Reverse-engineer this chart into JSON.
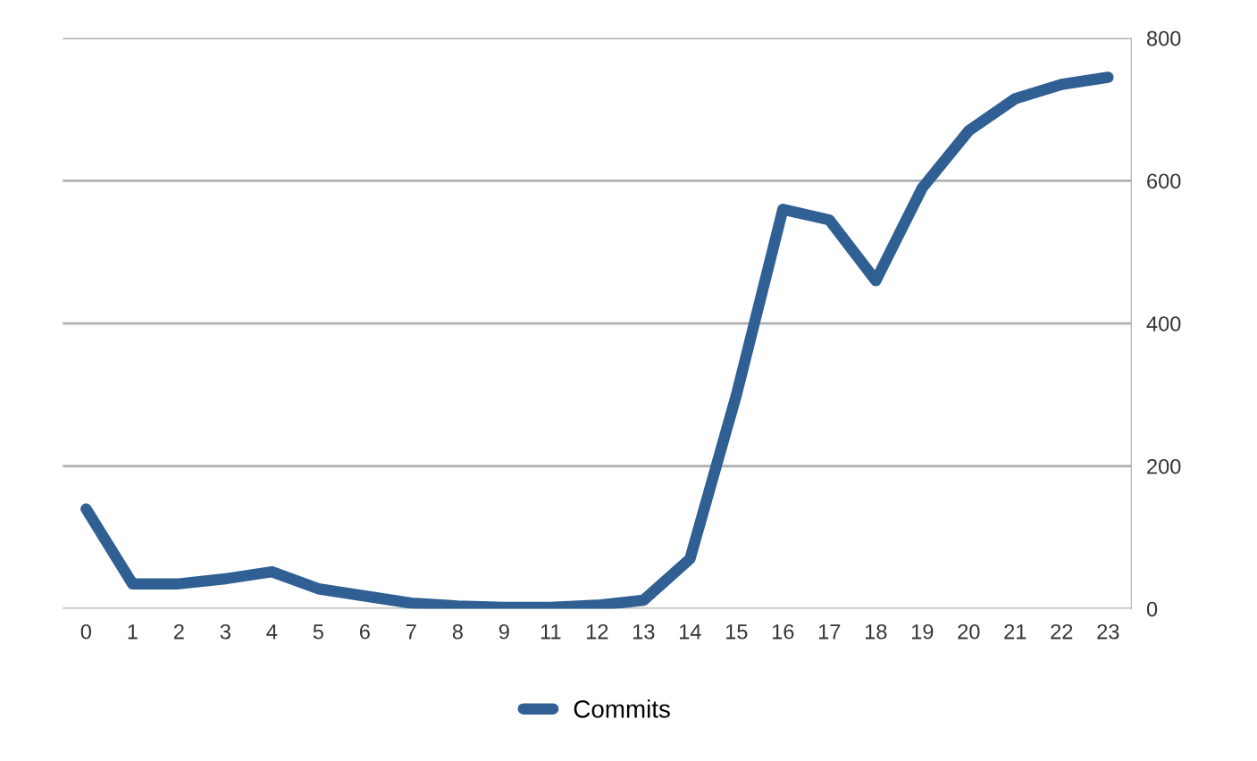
{
  "chart_data": {
    "type": "line",
    "categories": [
      "0",
      "1",
      "2",
      "3",
      "4",
      "5",
      "6",
      "7",
      "8",
      "9",
      "11",
      "12",
      "13",
      "14",
      "15",
      "16",
      "17",
      "18",
      "19",
      "20",
      "21",
      "22",
      "23"
    ],
    "series": [
      {
        "name": "Commits",
        "color": "#2f5f93",
        "values": [
          140,
          35,
          35,
          42,
          52,
          28,
          18,
          8,
          4,
          2,
          2,
          5,
          12,
          70,
          300,
          560,
          545,
          460,
          590,
          670,
          715,
          735,
          745
        ]
      }
    ],
    "ylim": [
      0,
      800
    ],
    "yticks": [
      0,
      200,
      400,
      600,
      800
    ],
    "grid": "y",
    "legend": "bottom",
    "marker": "none",
    "line_style": "solid"
  }
}
